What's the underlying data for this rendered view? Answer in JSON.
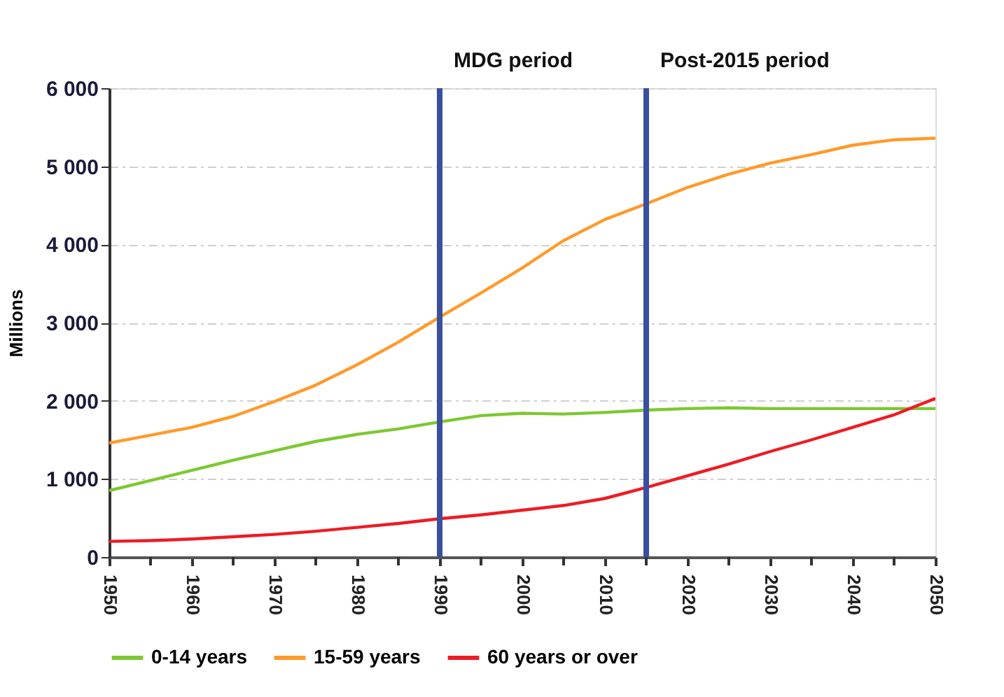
{
  "chart_data": {
    "type": "line",
    "ylabel": "Millions",
    "x": [
      1950,
      1955,
      1960,
      1965,
      1970,
      1975,
      1980,
      1985,
      1990,
      1995,
      2000,
      2005,
      2010,
      2015,
      2020,
      2025,
      2030,
      2035,
      2040,
      2045,
      2050
    ],
    "series": [
      {
        "name": "0-14 years",
        "color": "#7dc832",
        "values": [
          850,
          980,
          1110,
          1240,
          1360,
          1480,
          1570,
          1640,
          1730,
          1810,
          1840,
          1830,
          1850,
          1880,
          1900,
          1910,
          1900,
          1900,
          1900,
          1900,
          1900
        ]
      },
      {
        "name": "15-59 years",
        "color": "#ff9a2a",
        "values": [
          1460,
          1560,
          1660,
          1800,
          1990,
          2200,
          2460,
          2750,
          3070,
          3380,
          3700,
          4050,
          4320,
          4520,
          4730,
          4900,
          5040,
          5150,
          5270,
          5340,
          5360
        ]
      },
      {
        "name": "60 years or over",
        "color": "#ee1c24",
        "values": [
          200,
          210,
          230,
          260,
          290,
          330,
          380,
          430,
          490,
          540,
          600,
          660,
          750,
          890,
          1040,
          1190,
          1350,
          1500,
          1660,
          1820,
          2030
        ]
      }
    ],
    "xlim": [
      1950,
      2050
    ],
    "xticks": [
      1950,
      {
        "value": 1955,
        "label": null
      },
      1960,
      {
        "value": 1965,
        "label": null
      },
      1970,
      {
        "value": 1975,
        "label": null
      },
      1980,
      {
        "value": 1985,
        "label": null
      },
      1990,
      {
        "value": 1995,
        "label": null
      },
      2000,
      {
        "value": 2005,
        "label": null
      },
      2010,
      {
        "value": 2015,
        "label": null
      },
      2020,
      {
        "value": 2025,
        "label": null
      },
      2030,
      {
        "value": 2035,
        "label": null
      },
      2040,
      {
        "value": 2045,
        "label": null
      },
      2050
    ],
    "ylim": [
      0,
      6000
    ],
    "yticks": [
      {
        "value": 0,
        "label": "0"
      },
      {
        "value": 1000,
        "label": "1 000"
      },
      {
        "value": 2000,
        "label": "2 000"
      },
      {
        "value": 3000,
        "label": "3 000"
      },
      {
        "value": 4000,
        "label": "4 000"
      },
      {
        "value": 5000,
        "label": "5 000"
      },
      {
        "value": 6000,
        "label": "6 000"
      }
    ],
    "ref_lines": [
      {
        "axis": "x",
        "value": 1990,
        "label": "MDG period",
        "color": "#3a4fa0"
      },
      {
        "axis": "x",
        "value": 2015,
        "label": "Post-2015 period",
        "color": "#3a4fa0"
      }
    ],
    "grid": "y",
    "legend": "bottom",
    "marker": "none",
    "line_style": "solid"
  }
}
